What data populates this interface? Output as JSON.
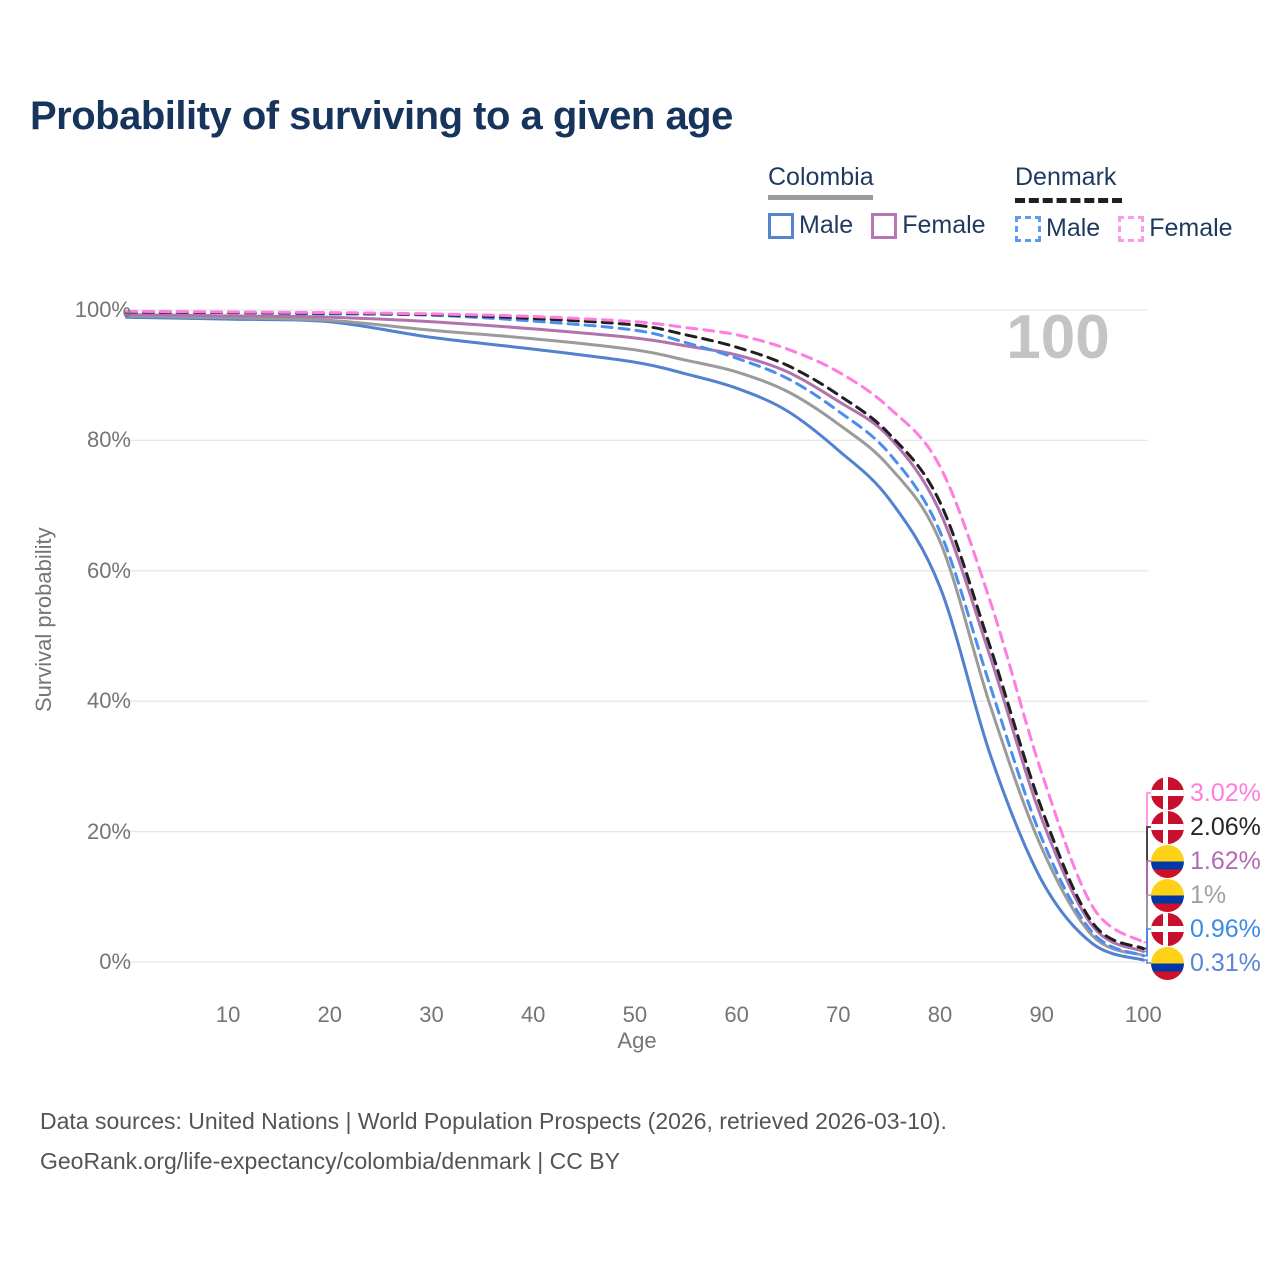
{
  "title": "Probability of surviving to a given age",
  "watermark_age": "100",
  "legend": {
    "groups": [
      {
        "name": "Colombia",
        "line_style": "solid",
        "line_color": "#9b9b9b",
        "items": [
          {
            "label": "Male",
            "swatch_color": "#5585cb",
            "swatch_style": "solid"
          },
          {
            "label": "Female",
            "swatch_color": "#b576b1",
            "swatch_style": "solid"
          }
        ]
      },
      {
        "name": "Denmark",
        "line_style": "dashed",
        "line_color": "#1f1f1f",
        "items": [
          {
            "label": "Male",
            "swatch_color": "#5c9aef",
            "swatch_style": "dashed"
          },
          {
            "label": "Female",
            "swatch_color": "#fc9ae8",
            "swatch_style": "dashed"
          }
        ]
      }
    ]
  },
  "y_axis": {
    "label": "Survival probability",
    "tick_values": [
      0,
      20,
      40,
      60,
      80,
      100
    ],
    "tick_labels": [
      "0%",
      "20%",
      "40%",
      "60%",
      "80%",
      "100%"
    ]
  },
  "x_axis": {
    "label": "Age",
    "tick_values": [
      10,
      20,
      30,
      40,
      50,
      60,
      70,
      80,
      90,
      100
    ]
  },
  "end_labels": [
    {
      "flag": "denmark",
      "series": "Denmark Female",
      "text": "3.02%",
      "value_pct": 3.02,
      "color": "#ff7ce0"
    },
    {
      "flag": "denmark",
      "series": "Denmark",
      "text": "2.06%",
      "value_pct": 2.06,
      "color": "#262626"
    },
    {
      "flag": "colombia",
      "series": "Colombia Female",
      "text": "1.62%",
      "value_pct": 1.62,
      "color": "#b569b5"
    },
    {
      "flag": "colombia",
      "series": "Colombia",
      "text": "1%",
      "value_pct": 1.0,
      "color": "#a0a0a0"
    },
    {
      "flag": "denmark",
      "series": "Denmark Male",
      "text": "0.96%",
      "value_pct": 0.96,
      "color": "#3b8bea"
    },
    {
      "flag": "colombia",
      "series": "Colombia Male",
      "text": "0.31%",
      "value_pct": 0.31,
      "color": "#5b85d6"
    }
  ],
  "footer": {
    "line1": "Data sources: United Nations | World Population Prospects (2026, retrieved 2026-03-10).",
    "line2": "GeoRank.org/life-expectancy/colombia/denmark | CC BY"
  },
  "chart_data": {
    "type": "line",
    "title": "Probability of surviving to a given age",
    "xlabel": "Age",
    "ylabel": "Survival probability",
    "xlim": [
      0,
      100
    ],
    "ylim": [
      0,
      100
    ],
    "grid": "horizontal",
    "legend_position": "top-right",
    "hovered_age": 100,
    "x": [
      0,
      10,
      20,
      30,
      40,
      50,
      55,
      60,
      65,
      70,
      75,
      80,
      85,
      90,
      95,
      100
    ],
    "series": [
      {
        "name": "Colombia Male",
        "country": "Colombia",
        "sex": "Male",
        "style": "solid",
        "color": "#5181cf",
        "values": [
          98.9,
          98.6,
          98.2,
          95.8,
          94.0,
          92.0,
          90.2,
          88.0,
          84.5,
          78.5,
          71.0,
          57.5,
          31.5,
          12.5,
          2.8,
          0.31
        ]
      },
      {
        "name": "Colombia",
        "country": "Colombia",
        "sex": "Both",
        "style": "solid",
        "color": "#9b9b9b",
        "values": [
          99.1,
          98.8,
          98.4,
          96.9,
          95.6,
          93.9,
          92.3,
          90.5,
          87.5,
          82.5,
          76.0,
          64.5,
          39.0,
          17.5,
          4.0,
          1.0
        ]
      },
      {
        "name": "Colombia Female",
        "country": "Colombia",
        "sex": "Female",
        "style": "solid",
        "color": "#b173ae",
        "values": [
          99.3,
          99.1,
          98.9,
          98.2,
          97.1,
          95.7,
          94.5,
          93.1,
          90.5,
          86.0,
          80.5,
          69.0,
          46.5,
          22.0,
          5.5,
          1.62
        ]
      },
      {
        "name": "Denmark Male",
        "country": "Denmark",
        "sex": "Male",
        "style": "dashed",
        "color": "#4b8fed",
        "values": [
          99.7,
          99.6,
          99.4,
          99.2,
          98.3,
          96.9,
          95.0,
          92.6,
          89.5,
          84.5,
          78.0,
          66.0,
          42.0,
          19.0,
          4.5,
          0.96
        ]
      },
      {
        "name": "Denmark",
        "country": "Denmark",
        "sex": "Both",
        "style": "dashed",
        "color": "#1f1f1f",
        "values": [
          99.7,
          99.6,
          99.5,
          99.3,
          98.7,
          97.7,
          96.2,
          94.3,
          91.5,
          87.0,
          81.0,
          70.5,
          48.0,
          23.5,
          6.0,
          2.06
        ]
      },
      {
        "name": "Denmark Female",
        "country": "Denmark",
        "sex": "Female",
        "style": "dashed",
        "color": "#ff7ce0",
        "values": [
          99.8,
          99.7,
          99.6,
          99.4,
          99.0,
          98.2,
          97.3,
          96.2,
          94.0,
          90.5,
          85.0,
          76.0,
          55.0,
          29.0,
          8.5,
          3.02
        ]
      }
    ]
  }
}
